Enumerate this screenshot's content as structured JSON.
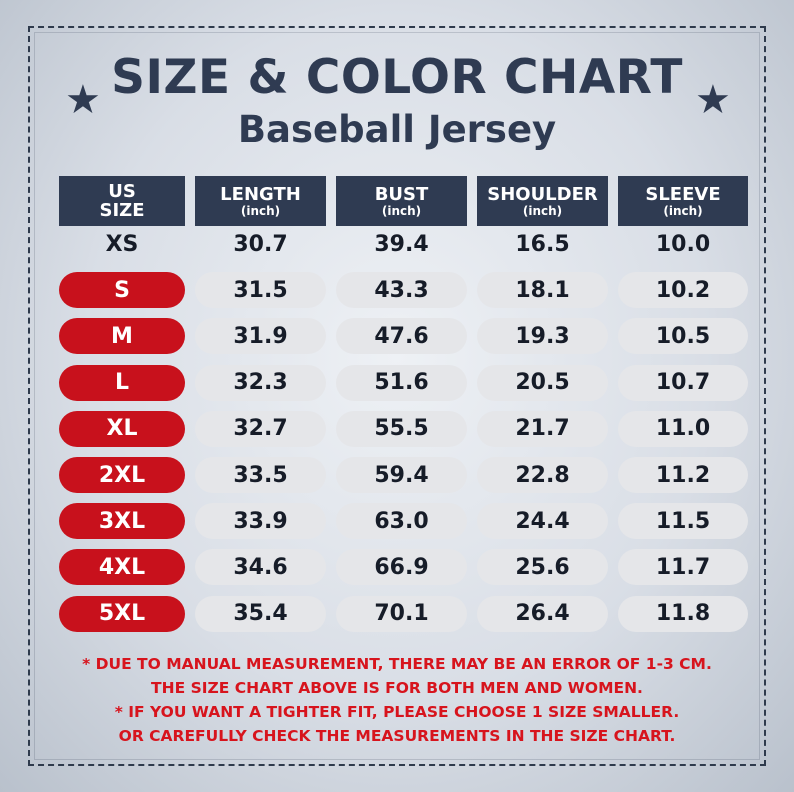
{
  "title": "SIZE & COLOR CHART",
  "subtitle": "Baseball Jersey",
  "colors": {
    "header_bg": "#2f3b52",
    "size_pill": "#c8111c",
    "value_pill": "#e5e6e9",
    "note_text": "#d7141d"
  },
  "decorations": {
    "left_icon": "star-icon",
    "right_icon": "star-icon",
    "star_glyph": "★"
  },
  "headers": [
    {
      "label": "US\nSIZE",
      "unit": ""
    },
    {
      "label": "LENGTH",
      "unit": "(inch)"
    },
    {
      "label": "BUST",
      "unit": "(inch)"
    },
    {
      "label": "SHOULDER",
      "unit": "(inch)"
    },
    {
      "label": "SLEEVE",
      "unit": "(inch)"
    }
  ],
  "rows": [
    {
      "size": "XS",
      "values": [
        "30.7",
        "39.4",
        "16.5",
        "10.0"
      ]
    },
    {
      "size": "S",
      "values": [
        "31.5",
        "43.3",
        "18.1",
        "10.2"
      ]
    },
    {
      "size": "M",
      "values": [
        "31.9",
        "47.6",
        "19.3",
        "10.5"
      ]
    },
    {
      "size": "L",
      "values": [
        "32.3",
        "51.6",
        "20.5",
        "10.7"
      ]
    },
    {
      "size": "XL",
      "values": [
        "32.7",
        "55.5",
        "21.7",
        "11.0"
      ]
    },
    {
      "size": "2XL",
      "values": [
        "33.5",
        "59.4",
        "22.8",
        "11.2"
      ]
    },
    {
      "size": "3XL",
      "values": [
        "33.9",
        "63.0",
        "24.4",
        "11.5"
      ]
    },
    {
      "size": "4XL",
      "values": [
        "34.6",
        "66.9",
        "25.6",
        "11.7"
      ]
    },
    {
      "size": "5XL",
      "values": [
        "35.4",
        "70.1",
        "26.4",
        "11.8"
      ]
    }
  ],
  "notes": [
    "* DUE TO MANUAL MEASUREMENT, THERE MAY BE AN ERROR OF 1-3 CM.",
    "THE SIZE CHART ABOVE IS FOR BOTH MEN AND WOMEN.",
    "* IF YOU WANT A TIGHTER FIT, PLEASE CHOOSE 1 SIZE SMALLER.",
    "OR CAREFULLY CHECK THE MEASUREMENTS IN THE SIZE CHART."
  ]
}
